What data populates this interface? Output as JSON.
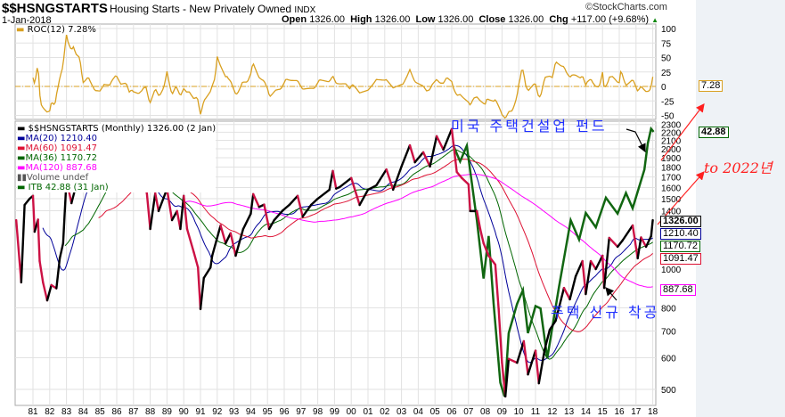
{
  "header": {
    "symbol": "$$HSNGSTARTS",
    "description": "Housing Starts - New Privately Owned",
    "exchange": "INDX",
    "date": "1-Jan-2018",
    "open_label": "Open",
    "open": "1326.00",
    "high_label": "High",
    "high": "1326.00",
    "low_label": "Low",
    "low": "1326.00",
    "close_label": "Close",
    "close": "1326.00",
    "chg_label": "Chg",
    "chg": "+117.00 (+9.68%)",
    "copyright": "©StockCharts.com"
  },
  "legend": {
    "roc": "ROC(12) 7.28%",
    "main": "$$HSNGSTARTS (Monthly) 1326.00 (2 Jan)",
    "ma20": "MA(20) 1210.40",
    "ma60": "MA(60) 1091.47",
    "ma36": "MA(36) 1170.72",
    "ma120": "MA(120) 887.68",
    "volume": "Volume undef",
    "itb": "ITB 42.88 (31 Jan)"
  },
  "tags": {
    "roc": "7.28",
    "itb": "42.88",
    "close": "1326.00",
    "ma20": "1210.40",
    "ma36": "1170.72",
    "ma60": "1091.47",
    "ma120": "887.68"
  },
  "annotations": {
    "itb_note": "미국 주택건설업 펀드",
    "starts_note": "주택 신규 착공",
    "forecast_note": "to 2022년"
  },
  "colors": {
    "price_up": "#000000",
    "price_down": "#cc1144",
    "ma20": "#000099",
    "ma60": "#dd1133",
    "ma36": "#006600",
    "ma120": "#ff00ff",
    "itb": "#116611",
    "roc": "#d9a020",
    "annotation": "#2030ff",
    "forecast": "#ff2020"
  },
  "chart_data": {
    "type": "line",
    "title": "$$HSNGSTARTS Housing Starts - New Privately Owned",
    "scale": "log",
    "ylim": [
      470,
      2300
    ],
    "yticks": [
      500,
      600,
      700,
      800,
      1000,
      1400,
      1500,
      1600,
      1700,
      1800,
      1900,
      2000,
      2100,
      2200,
      2300
    ],
    "roc_ticks": [
      100,
      75,
      50,
      25,
      0,
      -25,
      -50
    ],
    "xlabels": [
      "81",
      "82",
      "83",
      "84",
      "85",
      "86",
      "87",
      "88",
      "89",
      "90",
      "91",
      "92",
      "93",
      "94",
      "95",
      "96",
      "97",
      "98",
      "99",
      "00",
      "01",
      "02",
      "03",
      "04",
      "05",
      "06",
      "07",
      "08",
      "09",
      "10",
      "11",
      "12",
      "13",
      "14",
      "15",
      "16",
      "17",
      "18"
    ],
    "housing_starts": [
      [
        1980.0,
        1326
      ],
      [
        1980.3,
        926
      ],
      [
        1980.5,
        1447
      ],
      [
        1980.8,
        1500
      ],
      [
        1981.0,
        1525
      ],
      [
        1981.1,
        1240
      ],
      [
        1981.3,
        1330
      ],
      [
        1981.4,
        1047
      ],
      [
        1981.6,
        926
      ],
      [
        1981.85,
        835
      ],
      [
        1982.1,
        912
      ],
      [
        1982.4,
        895
      ],
      [
        1982.6,
        1064
      ],
      [
        1982.8,
        1160
      ],
      [
        1982.9,
        1397
      ],
      [
        1983.0,
        1670
      ],
      [
        1983.3,
        1462
      ],
      [
        1983.7,
        1700
      ],
      [
        1984.0,
        1780
      ],
      [
        1984.35,
        1690
      ],
      [
        1984.7,
        1580
      ],
      [
        1985.0,
        1640
      ],
      [
        1985.25,
        1776
      ],
      [
        1985.6,
        1650
      ],
      [
        1985.95,
        1940
      ],
      [
        1986.2,
        1860
      ],
      [
        1986.5,
        1776
      ],
      [
        1986.75,
        1603
      ],
      [
        1986.9,
        1795
      ],
      [
        1987.3,
        1603
      ],
      [
        1987.6,
        1670
      ],
      [
        1987.8,
        1547
      ],
      [
        1988.0,
        1260
      ],
      [
        1988.3,
        1547
      ],
      [
        1988.5,
        1397
      ],
      [
        1989.0,
        1587
      ],
      [
        1989.3,
        1326
      ],
      [
        1989.6,
        1397
      ],
      [
        1989.8,
        1260
      ],
      [
        1990.0,
        1525
      ],
      [
        1990.2,
        1260
      ],
      [
        1990.6,
        1102
      ],
      [
        1990.85,
        1010
      ],
      [
        1991.0,
        794
      ],
      [
        1991.2,
        950
      ],
      [
        1991.6,
        1010
      ],
      [
        1991.7,
        1080
      ],
      [
        1992.2,
        1286
      ],
      [
        1992.5,
        1160
      ],
      [
        1992.8,
        1230
      ],
      [
        1993.1,
        1080
      ],
      [
        1993.55,
        1260
      ],
      [
        1994.0,
        1375
      ],
      [
        1994.15,
        1540
      ],
      [
        1994.5,
        1430
      ],
      [
        1994.8,
        1450
      ],
      [
        1995.1,
        1260
      ],
      [
        1995.4,
        1326
      ],
      [
        1995.9,
        1400
      ],
      [
        1996.3,
        1447
      ],
      [
        1996.8,
        1525
      ],
      [
        1997.1,
        1353
      ],
      [
        1997.6,
        1447
      ],
      [
        1998.0,
        1500
      ],
      [
        1998.7,
        1580
      ],
      [
        1998.9,
        1760
      ],
      [
        1999.1,
        1590
      ],
      [
        1999.3,
        1603
      ],
      [
        2000.0,
        1690
      ],
      [
        2000.5,
        1447
      ],
      [
        2001.0,
        1580
      ],
      [
        2001.5,
        1620
      ],
      [
        2002.1,
        1776
      ],
      [
        2002.5,
        1580
      ],
      [
        2003.0,
        1806
      ],
      [
        2003.5,
        2040
      ],
      [
        2003.8,
        1850
      ],
      [
        2004.3,
        1960
      ],
      [
        2004.7,
        1806
      ],
      [
        2005.1,
        2150
      ],
      [
        2005.5,
        1990
      ],
      [
        2006.0,
        2240
      ],
      [
        2006.3,
        1750
      ],
      [
        2006.6,
        1690
      ],
      [
        2007.0,
        1630
      ],
      [
        2007.1,
        1397
      ],
      [
        2007.5,
        1397
      ],
      [
        2007.7,
        1260
      ],
      [
        2007.9,
        1160
      ],
      [
        2008.2,
        1080
      ],
      [
        2008.6,
        1026
      ],
      [
        2008.8,
        794
      ],
      [
        2009.0,
        583
      ],
      [
        2009.2,
        480
      ],
      [
        2009.4,
        596
      ],
      [
        2009.9,
        583
      ],
      [
        2010.3,
        660
      ],
      [
        2010.55,
        545
      ],
      [
        2011.0,
        625
      ],
      [
        2011.2,
        518
      ],
      [
        2011.55,
        630
      ],
      [
        2011.85,
        705
      ],
      [
        2012.2,
        742
      ],
      [
        2012.7,
        897
      ],
      [
        2013.05,
        840
      ],
      [
        2013.4,
        960
      ],
      [
        2013.8,
        1047
      ],
      [
        2014.0,
        866
      ],
      [
        2014.3,
        1047
      ],
      [
        2014.6,
        1000
      ],
      [
        2015.0,
        1080
      ],
      [
        2015.1,
        897
      ],
      [
        2015.4,
        1197
      ],
      [
        2015.9,
        1137
      ],
      [
        2016.2,
        1180
      ],
      [
        2016.8,
        1286
      ],
      [
        2017.1,
        1064
      ],
      [
        2017.3,
        1200
      ],
      [
        2017.6,
        1137
      ],
      [
        2017.9,
        1209
      ],
      [
        2018.0,
        1326
      ]
    ],
    "itb": [
      [
        2006.1,
        39
      ],
      [
        2006.5,
        35
      ],
      [
        2006.9,
        39
      ],
      [
        2007.5,
        23.4
      ],
      [
        2007.9,
        15.7
      ],
      [
        2008.2,
        21
      ],
      [
        2008.5,
        13.2
      ],
      [
        2008.9,
        7.7
      ],
      [
        2009.15,
        7
      ],
      [
        2009.4,
        10.8
      ],
      [
        2009.9,
        13.2
      ],
      [
        2010.25,
        14.5
      ],
      [
        2010.55,
        10.8
      ],
      [
        2011.0,
        13
      ],
      [
        2011.3,
        12.8
      ],
      [
        2011.7,
        9.1
      ],
      [
        2012.4,
        14.8
      ],
      [
        2013.1,
        23.4
      ],
      [
        2013.6,
        20.5
      ],
      [
        2014.0,
        24.6
      ],
      [
        2014.6,
        22.3
      ],
      [
        2015.2,
        27.3
      ],
      [
        2015.9,
        24.5
      ],
      [
        2016.4,
        28.2
      ],
      [
        2016.8,
        25.4
      ],
      [
        2017.5,
        33.1
      ],
      [
        2017.7,
        39.6
      ],
      [
        2017.9,
        43.8
      ],
      [
        2018.05,
        42.88
      ]
    ],
    "ma_periods": [
      20,
      36,
      60,
      120
    ],
    "roc_period": 12
  }
}
